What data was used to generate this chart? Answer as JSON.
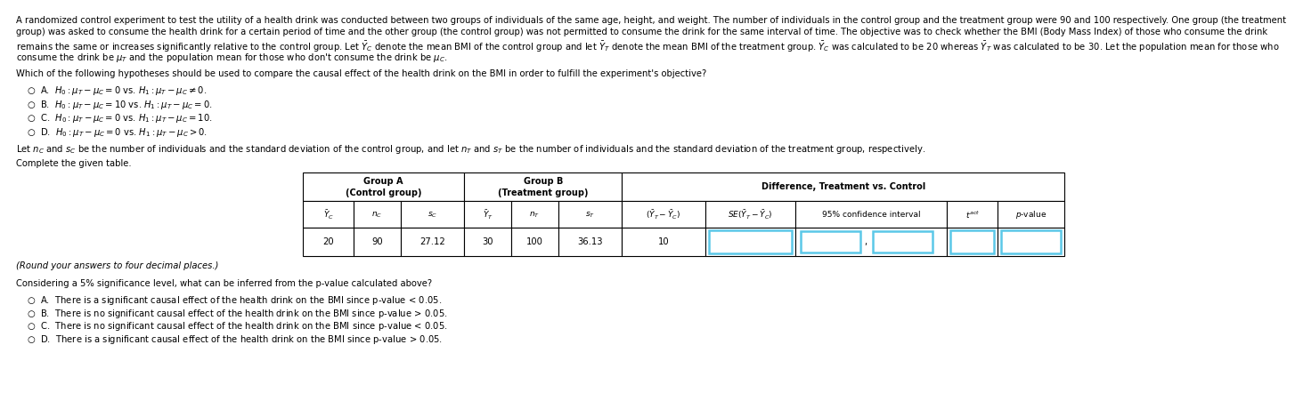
{
  "bg_color": "#ffffff",
  "text_color": "#000000",
  "input_box_color": "#5bc8e8",
  "font_size_body": 7.2,
  "font_size_table_header": 7.0,
  "font_size_table_data": 7.2,
  "para1_lines": [
    "A randomized control experiment to test the utility of a health drink was conducted between two groups of individuals of the same age, height, and weight. The number of individuals in the control group and the treatment group were 90 and 100 respectively. One group (the treatment",
    "group) was asked to consume the health drink for a certain period of time and the other group (the control group) was not permitted to consume the drink for the same interval of time. The objective was to check whether the BMI (Body Mass Index) of those who consume the drink",
    "remains the same or increases significantly relative to the control group. Let $\\bar{Y}_C$ denote the mean BMI of the control group and let $\\bar{Y}_T$ denote the mean BMI of the treatment group. $\\bar{Y}_C$ was calculated to be 20 whereas $\\bar{Y}_T$ was calculated to be 30. Let the population mean for those who",
    "consume the drink be $\\mu_T$ and the population mean for those who don't consume the drink be $\\mu_C$."
  ],
  "question1": "Which of the following hypotheses should be used to compare the causal effect of the health drink on the BMI in order to fulfill the experiment's objective?",
  "options1": [
    "$\\bigcirc$  A.  $H_0: \\mu_T - \\mu_C = 0$ vs. $H_1: \\mu_T - \\mu_C \\neq 0$.",
    "$\\bigcirc$  B.  $H_0: \\mu_T - \\mu_C = 10$ vs. $H_1: \\mu_T - \\mu_C = 0$.",
    "$\\bigcirc$  C.  $H_0: \\mu_T - \\mu_C = 0$ vs. $H_1: \\mu_T - \\mu_C = 10$.",
    "$\\bigcirc$  D.  $H_0: \\mu_T - \\mu_C = 0$ vs. $H_1: \\mu_T - \\mu_C > 0$."
  ],
  "para2": "Let $n_C$ and $s_C$ be the number of individuals and the standard deviation of the control group, and let $n_T$ and $s_T$ be the number of individuals and the standard deviation of the treatment group, respectively.",
  "table_label": "Complete the given table.",
  "round_note": "(Round your answers to four decimal places.)",
  "question2": "Considering a 5% significance level, what can be inferred from the p-value calculated above?",
  "options2": [
    "$\\bigcirc$  A.  There is a significant causal effect of the health drink on the BMI since p-value < 0.05.",
    "$\\bigcirc$  B.  There is no significant causal effect of the health drink on the BMI since p-value > 0.05.",
    "$\\bigcirc$  C.  There is no significant causal effect of the health drink on the BMI since p-value < 0.05.",
    "$\\bigcirc$  D.  There is a significant causal effect of the health drink on the BMI since p-value > 0.05."
  ],
  "table_data": {
    "yc": "20",
    "nc": "90",
    "sc": "27.12",
    "yt": "30",
    "nt": "100",
    "st": "36.13",
    "diff": "10"
  },
  "col_labels": [
    "$\\bar{Y}_C$",
    "$n_C$",
    "$s_C$",
    "$\\bar{Y}_T$",
    "$n_T$",
    "$s_T$",
    "$(\\bar{Y}_T - \\bar{Y}_C)$",
    "$SE(\\bar{Y}_T - \\bar{Y}_C)$",
    "95% confidence interval",
    "$t^{act}$",
    "$p$-value"
  ]
}
